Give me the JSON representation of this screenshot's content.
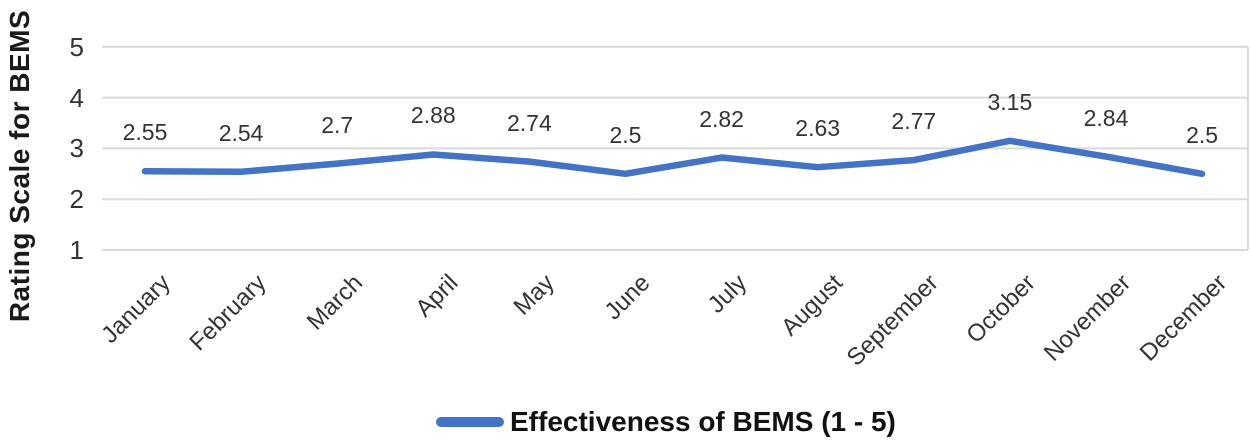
{
  "chart_data": {
    "type": "line",
    "title": "",
    "categories": [
      "January",
      "February",
      "March",
      "April",
      "May",
      "June",
      "July",
      "August",
      "September",
      "October",
      "November",
      "December"
    ],
    "series": [
      {
        "name": "Effectiveness of BEMS (1 - 5)",
        "values": [
          2.55,
          2.54,
          2.7,
          2.88,
          2.74,
          2.5,
          2.82,
          2.63,
          2.77,
          3.15,
          2.84,
          2.5
        ]
      }
    ],
    "data_labels": [
      "2.55",
      "2.54",
      "2.7",
      "2.88",
      "2.74",
      "2.5",
      "2.82",
      "2.63",
      "2.77",
      "3.15",
      "2.84",
      "2.5"
    ],
    "xlabel": "",
    "ylabel": "Rating Scale for BEMS",
    "ylim": [
      1,
      5
    ],
    "yticks": [
      5,
      4,
      3,
      2,
      1
    ],
    "grid": true,
    "legend_position": "bottom",
    "colors": {
      "line": "#4472C4",
      "gridline": "#D9D9D9",
      "tick_text": "#333333",
      "title_text": "#1a1a1a"
    }
  }
}
